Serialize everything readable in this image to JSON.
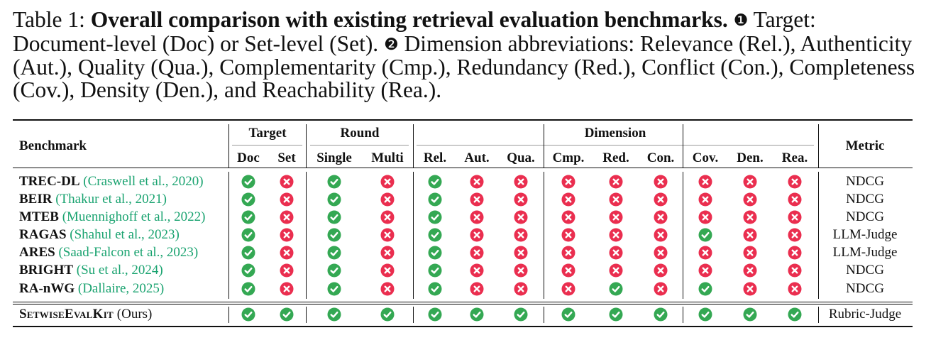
{
  "caption": {
    "label": "Table 1:",
    "bold": "Overall comparison with existing retrieval evaluation benchmarks.",
    "marker1": "❶",
    "text1": "Target: Document-level (Doc) or Set-level (Set).",
    "marker2": "❷",
    "text2": "Dimension abbreviations: Relevance (Rel.), Authenticity (Aut.), Quality (Qua.), Complementarity (Cmp.), Redundancy (Red.), Conflict (Con.), Completeness (Cov.), Density (Den.), and Reachability (Rea.)."
  },
  "headers": {
    "benchmark": "Benchmark",
    "target": "Target",
    "round": "Round",
    "dimension": "Dimension",
    "metric": "Metric",
    "columns": [
      "Doc",
      "Set",
      "Single",
      "Multi",
      "Rel.",
      "Aut.",
      "Qua.",
      "Cmp.",
      "Red.",
      "Con.",
      "Cov.",
      "Den.",
      "Rea."
    ]
  },
  "rows": [
    {
      "name": "TREC-DL",
      "cite_author": "Craswell et al.",
      "cite_year": "2020",
      "values": [
        1,
        0,
        1,
        0,
        1,
        0,
        0,
        0,
        0,
        0,
        0,
        0,
        0
      ],
      "metric": "NDCG"
    },
    {
      "name": "BEIR",
      "cite_author": "Thakur et al.",
      "cite_year": "2021",
      "values": [
        1,
        0,
        1,
        0,
        1,
        0,
        0,
        0,
        0,
        0,
        0,
        0,
        0
      ],
      "metric": "NDCG"
    },
    {
      "name": "MTEB",
      "cite_author": "Muennighoff et al.",
      "cite_year": "2022",
      "values": [
        1,
        0,
        1,
        0,
        1,
        0,
        0,
        0,
        0,
        0,
        0,
        0,
        0
      ],
      "metric": "NDCG"
    },
    {
      "name": "RAGAS",
      "cite_author": "Shahul et al.",
      "cite_year": "2023",
      "values": [
        1,
        0,
        1,
        0,
        1,
        0,
        0,
        0,
        0,
        0,
        1,
        0,
        0
      ],
      "metric": "LLM-Judge"
    },
    {
      "name": "ARES",
      "cite_author": "Saad-Falcon et al.",
      "cite_year": "2023",
      "values": [
        1,
        0,
        1,
        0,
        1,
        0,
        0,
        0,
        0,
        0,
        0,
        0,
        0
      ],
      "metric": "LLM-Judge"
    },
    {
      "name": "BRIGHT",
      "cite_author": "Su et al.",
      "cite_year": "2024",
      "values": [
        1,
        0,
        1,
        0,
        1,
        0,
        0,
        0,
        0,
        0,
        0,
        0,
        0
      ],
      "metric": "NDCG"
    },
    {
      "name": "RA-nWG",
      "cite_author": "Dallaire",
      "cite_year": "2025",
      "values": [
        1,
        0,
        1,
        0,
        1,
        0,
        0,
        0,
        1,
        0,
        1,
        0,
        0
      ],
      "metric": "NDCG"
    }
  ],
  "ours": {
    "name": "SetwiseEvalKit",
    "suffix": "(Ours)",
    "values": [
      1,
      1,
      1,
      1,
      1,
      1,
      1,
      1,
      1,
      1,
      1,
      1,
      1
    ],
    "metric": "Rubric-Judge"
  },
  "colors": {
    "check": "#34a853",
    "cross": "#ea2e4f",
    "citation": "#1aa370"
  }
}
